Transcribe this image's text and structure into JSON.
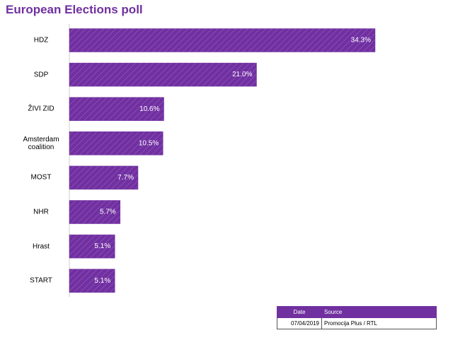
{
  "chart_data": {
    "type": "bar",
    "orientation": "horizontal",
    "title": "European Elections poll",
    "categories": [
      "HDZ",
      "SDP",
      "ŽIVI ZID",
      "Amsterdam coalition",
      "MOST",
      "NHR",
      "Hrast",
      "START"
    ],
    "values": [
      34.3,
      21.0,
      10.6,
      10.5,
      7.7,
      5.7,
      5.1,
      5.1
    ],
    "value_labels": [
      "34.3%",
      "21.0%",
      "10.6%",
      "10.5%",
      "7.7%",
      "5.7%",
      "5.1%",
      "5.1%"
    ],
    "color": "#7030a0"
  },
  "info": {
    "header": [
      "Date",
      "Source"
    ],
    "row": [
      "07/04/2019",
      "Promocija Plus / RTL"
    ]
  }
}
